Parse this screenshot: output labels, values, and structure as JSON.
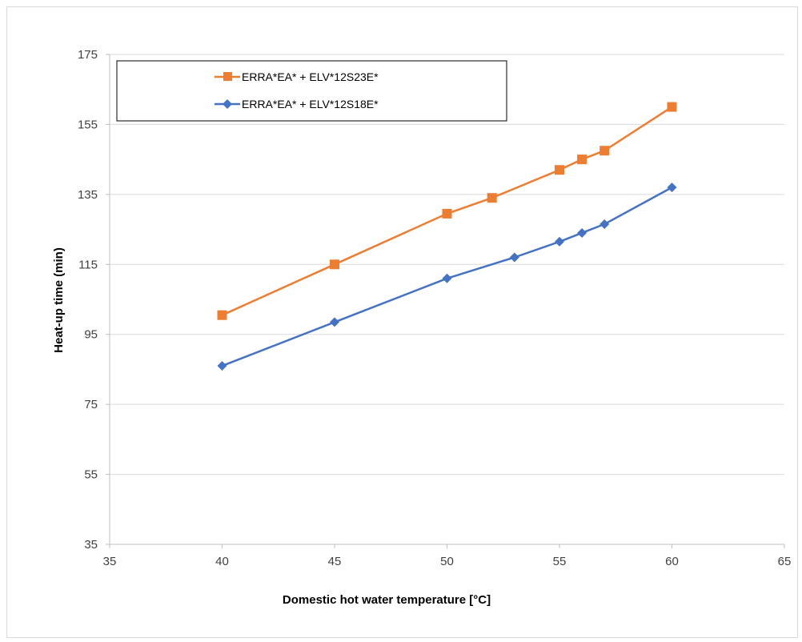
{
  "chart_data": {
    "type": "line",
    "title": "",
    "xlabel": "Domestic hot water temperature [°C]",
    "ylabel": "Heat-up time (min)",
    "xlim": [
      35,
      65
    ],
    "ylim": [
      35,
      175
    ],
    "x_ticks": [
      35,
      40,
      45,
      50,
      55,
      60,
      65
    ],
    "y_ticks": [
      35,
      55,
      75,
      95,
      115,
      135,
      155,
      175
    ],
    "grid": "horizontal",
    "legend_position": "top-left",
    "series": [
      {
        "name": "ERRA*EA* + ELV*12S23E*",
        "color": "#ED7D31",
        "marker": "square",
        "x": [
          40,
          45,
          50,
          52,
          55,
          56,
          57,
          60
        ],
        "y": [
          100.5,
          115,
          129.5,
          134,
          142,
          145,
          147.5,
          160
        ]
      },
      {
        "name": "ERRA*EA* + ELV*12S18E*",
        "color": "#4472C4",
        "marker": "diamond",
        "x": [
          40,
          45,
          50,
          53,
          55,
          56,
          57,
          60
        ],
        "y": [
          86,
          98.5,
          111,
          117,
          121.5,
          124,
          126.5,
          137
        ]
      }
    ]
  }
}
